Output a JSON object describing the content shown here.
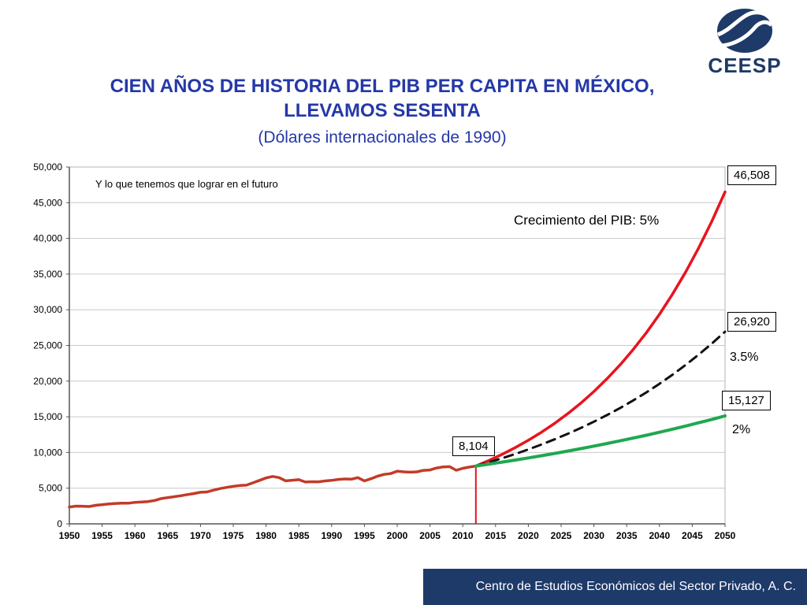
{
  "slide": {
    "logo": {
      "text": "CEESP"
    },
    "title": {
      "line1": "CIEN AÑOS DE HISTORIA DEL PIB PER CAPITA EN MÉXICO,",
      "line2": "LLEVAMOS SESENTA",
      "subtitle": "(Dólares  internacionales de 1990)"
    },
    "footer": {
      "text": "Centro de Estudios Económicos del Sector Privado, A. C."
    }
  },
  "annotations": {
    "future_note": "Y lo que tenemos que lograr en el futuro",
    "growth_title": "Crecimiento del PIB: 5%",
    "end_5pct": "46,508",
    "end_35pct": "26,920",
    "end_2pct": "15,127",
    "start_value": "8,104",
    "rate_35pct": "3.5%",
    "rate_2pct": "2%"
  },
  "colors": {
    "title_blue": "#2438a8",
    "navy": "#1e3a69",
    "grid_gray": "#c9c9c9",
    "axis_gray": "#555555",
    "hist_red": "#c43a28",
    "proj_red": "#e8141e",
    "proj_green": "#1fa84f",
    "proj_black": "#111111"
  },
  "chart_data": {
    "type": "line",
    "title": "CIEN AÑOS DE HISTORIA DEL PIB PER CAPITA EN MÉXICO, LLEVAMOS SESENTA (Dólares internacionales de 1990)",
    "xlabel": "",
    "ylabel": "",
    "xlim": [
      1950,
      2050
    ],
    "ylim": [
      0,
      50000
    ],
    "grid": "horizontal",
    "legend": "none",
    "x_ticks": [
      1950,
      1955,
      1960,
      1965,
      1970,
      1975,
      1980,
      1985,
      1990,
      1995,
      2000,
      2005,
      2010,
      2015,
      2020,
      2025,
      2030,
      2035,
      2040,
      2045,
      2050
    ],
    "y_ticks": [
      {
        "value": 0,
        "label": "0"
      },
      {
        "value": 5000,
        "label": "5,000"
      },
      {
        "value": 10000,
        "label": "10,000"
      },
      {
        "value": 15000,
        "label": "15,000"
      },
      {
        "value": 20000,
        "label": "20,000"
      },
      {
        "value": 25000,
        "label": "25,000"
      },
      {
        "value": 30000,
        "label": "30,000"
      },
      {
        "value": 35000,
        "label": "35,000"
      },
      {
        "value": 40000,
        "label": "40,000"
      },
      {
        "value": 45000,
        "label": "45,000"
      },
      {
        "value": 50000,
        "label": "50,000"
      }
    ],
    "marker": {
      "year": 2012,
      "value": 8104,
      "color": "#e8141e"
    },
    "series": [
      {
        "name": "serie-historica",
        "color": "#c43a28",
        "width": 3.5,
        "dash": null,
        "points": [
          [
            1950,
            2365
          ],
          [
            1951,
            2480
          ],
          [
            1952,
            2470
          ],
          [
            1953,
            2430
          ],
          [
            1954,
            2590
          ],
          [
            1955,
            2690
          ],
          [
            1956,
            2780
          ],
          [
            1957,
            2860
          ],
          [
            1958,
            2900
          ],
          [
            1959,
            2890
          ],
          [
            1960,
            3010
          ],
          [
            1961,
            3060
          ],
          [
            1962,
            3120
          ],
          [
            1963,
            3280
          ],
          [
            1964,
            3540
          ],
          [
            1965,
            3680
          ],
          [
            1966,
            3810
          ],
          [
            1967,
            3940
          ],
          [
            1968,
            4110
          ],
          [
            1969,
            4250
          ],
          [
            1970,
            4430
          ],
          [
            1971,
            4470
          ],
          [
            1972,
            4720
          ],
          [
            1973,
            4940
          ],
          [
            1974,
            5110
          ],
          [
            1975,
            5270
          ],
          [
            1976,
            5370
          ],
          [
            1977,
            5420
          ],
          [
            1978,
            5750
          ],
          [
            1979,
            6090
          ],
          [
            1980,
            6430
          ],
          [
            1981,
            6650
          ],
          [
            1982,
            6480
          ],
          [
            1983,
            6030
          ],
          [
            1984,
            6120
          ],
          [
            1985,
            6190
          ],
          [
            1986,
            5860
          ],
          [
            1987,
            5900
          ],
          [
            1988,
            5890
          ],
          [
            1989,
            6010
          ],
          [
            1990,
            6090
          ],
          [
            1991,
            6230
          ],
          [
            1992,
            6290
          ],
          [
            1993,
            6260
          ],
          [
            1994,
            6480
          ],
          [
            1995,
            6010
          ],
          [
            1996,
            6320
          ],
          [
            1997,
            6680
          ],
          [
            1998,
            6930
          ],
          [
            1999,
            7040
          ],
          [
            2000,
            7380
          ],
          [
            2001,
            7290
          ],
          [
            2002,
            7240
          ],
          [
            2003,
            7290
          ],
          [
            2004,
            7500
          ],
          [
            2005,
            7550
          ],
          [
            2006,
            7830
          ],
          [
            2007,
            7980
          ],
          [
            2008,
            8010
          ],
          [
            2009,
            7510
          ],
          [
            2010,
            7780
          ],
          [
            2011,
            7960
          ],
          [
            2012,
            8104
          ]
        ]
      },
      {
        "name": "proyeccion-5pct",
        "color": "#e8141e",
        "width": 3.5,
        "dash": null,
        "points": [
          [
            2012,
            8104
          ],
          [
            2014,
            8885
          ],
          [
            2016,
            9740
          ],
          [
            2018,
            10679
          ],
          [
            2020,
            11707
          ],
          [
            2022,
            12835
          ],
          [
            2024,
            14071
          ],
          [
            2026,
            15427
          ],
          [
            2028,
            16913
          ],
          [
            2030,
            18541
          ],
          [
            2032,
            20328
          ],
          [
            2034,
            22287
          ],
          [
            2036,
            24433
          ],
          [
            2038,
            26786
          ],
          [
            2040,
            29365
          ],
          [
            2042,
            32195
          ],
          [
            2044,
            35297
          ],
          [
            2046,
            38698
          ],
          [
            2048,
            42427
          ],
          [
            2050,
            46508
          ]
        ]
      },
      {
        "name": "proyeccion-3-5pct",
        "color": "#111111",
        "width": 3,
        "dash": "11,8",
        "points": [
          [
            2012,
            8104
          ],
          [
            2014,
            8633
          ],
          [
            2016,
            9196
          ],
          [
            2018,
            9795
          ],
          [
            2020,
            10434
          ],
          [
            2022,
            11115
          ],
          [
            2024,
            11840
          ],
          [
            2026,
            12612
          ],
          [
            2028,
            13435
          ],
          [
            2030,
            14311
          ],
          [
            2032,
            15245
          ],
          [
            2034,
            16239
          ],
          [
            2036,
            17299
          ],
          [
            2038,
            18427
          ],
          [
            2040,
            19628
          ],
          [
            2042,
            20909
          ],
          [
            2044,
            22273
          ],
          [
            2046,
            23726
          ],
          [
            2048,
            25273
          ],
          [
            2050,
            26920
          ]
        ]
      },
      {
        "name": "proyeccion-2pct",
        "color": "#1fa84f",
        "width": 4,
        "dash": null,
        "points": [
          [
            2012,
            8104
          ],
          [
            2014,
            8375
          ],
          [
            2016,
            8654
          ],
          [
            2018,
            8944
          ],
          [
            2020,
            9242
          ],
          [
            2022,
            9551
          ],
          [
            2024,
            9870
          ],
          [
            2026,
            10200
          ],
          [
            2028,
            10540
          ],
          [
            2030,
            10892
          ],
          [
            2032,
            11256
          ],
          [
            2034,
            11632
          ],
          [
            2036,
            12021
          ],
          [
            2038,
            12422
          ],
          [
            2040,
            12837
          ],
          [
            2042,
            13266
          ],
          [
            2044,
            13710
          ],
          [
            2046,
            14168
          ],
          [
            2048,
            14641
          ],
          [
            2050,
            15127
          ]
        ]
      }
    ]
  }
}
